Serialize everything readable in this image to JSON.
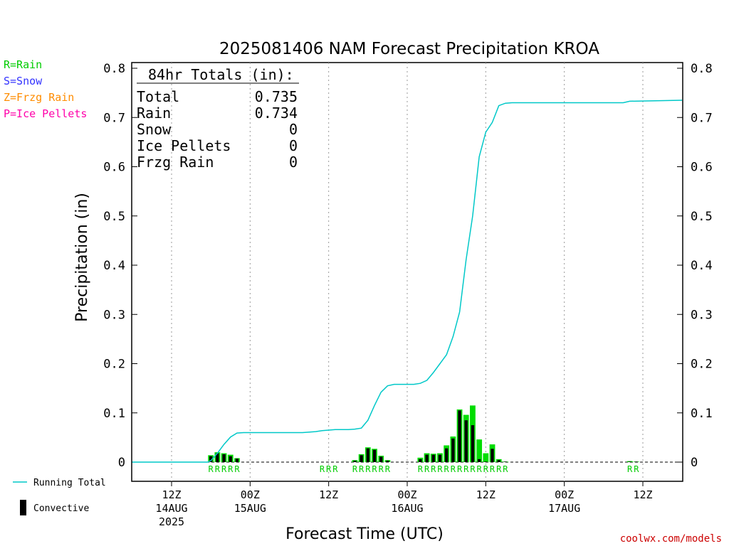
{
  "chart_data": {
    "type": "bar",
    "title": "2025081406 NAM Forecast Precipitation KROA",
    "xlabel": "Forecast Time (UTC)",
    "ylabel": "Precipitation (in)",
    "ylim": [
      0,
      0.8
    ],
    "yticks": [
      "0",
      "0.1",
      "0.2",
      "0.3",
      "0.4",
      "0.5",
      "0.6",
      "0.7",
      "0.8"
    ],
    "ytick_values": [
      0,
      0.1,
      0.2,
      0.3,
      0.4,
      0.5,
      0.6,
      0.7,
      0.8
    ],
    "x_units": "forecast hour",
    "xlim": [
      0,
      84
    ],
    "xticks": [
      {
        "hour": 6,
        "line1": "12Z",
        "line2": "14AUG",
        "line3": "2025"
      },
      {
        "hour": 18,
        "line1": "00Z",
        "line2": "15AUG",
        "line3": ""
      },
      {
        "hour": 30,
        "line1": "12Z",
        "line2": "",
        "line3": ""
      },
      {
        "hour": 42,
        "line1": "00Z",
        "line2": "16AUG",
        "line3": ""
      },
      {
        "hour": 54,
        "line1": "12Z",
        "line2": "",
        "line3": ""
      },
      {
        "hour": 66,
        "line1": "00Z",
        "line2": "17AUG",
        "line3": ""
      },
      {
        "hour": 78,
        "line1": "12Z",
        "line2": "",
        "line3": ""
      }
    ],
    "grid": "vertical dotted",
    "series": [
      {
        "name": "Rain",
        "color": "#00dd00",
        "x": [
          12,
          13,
          14,
          15,
          16,
          34,
          35,
          36,
          37,
          38,
          39,
          44,
          45,
          46,
          47,
          48,
          49,
          50,
          51,
          52,
          53,
          54,
          55,
          56,
          57,
          76,
          77
        ],
        "values": [
          0.014,
          0.02,
          0.018,
          0.015,
          0.008,
          0.004,
          0.016,
          0.03,
          0.027,
          0.013,
          0.004,
          0.009,
          0.018,
          0.017,
          0.018,
          0.034,
          0.052,
          0.107,
          0.096,
          0.115,
          0.046,
          0.018,
          0.036,
          0.006,
          0.001,
          0.002,
          0.001
        ]
      },
      {
        "name": "Convective",
        "color": "#000000",
        "x": [
          12,
          13,
          14,
          15,
          16,
          34,
          35,
          36,
          37,
          38,
          39,
          44,
          45,
          46,
          47,
          48,
          49,
          50,
          51,
          52,
          53,
          54,
          55,
          56,
          57,
          76,
          77
        ],
        "values": [
          0.012,
          0.018,
          0.016,
          0.012,
          0.007,
          0.003,
          0.014,
          0.028,
          0.025,
          0.011,
          0.003,
          0.006,
          0.015,
          0.015,
          0.015,
          0.028,
          0.048,
          0.105,
          0.085,
          0.075,
          0.006,
          0.001,
          0.027,
          0.004,
          0.001,
          0.001,
          0.001
        ]
      },
      {
        "name": "Running Total",
        "color": "#00c8c8",
        "x": [
          0,
          11.5,
          12,
          13,
          14,
          15,
          16,
          17,
          18,
          20,
          22,
          24,
          26,
          28,
          29,
          30,
          31,
          32,
          33,
          34,
          35,
          36,
          37,
          38,
          39,
          40,
          41,
          42,
          43,
          44,
          45,
          46,
          47,
          48,
          49,
          50,
          51,
          52,
          53,
          54,
          55,
          56,
          57,
          58,
          60,
          70,
          75,
          76,
          84
        ],
        "values": [
          0,
          0,
          0.003,
          0.018,
          0.036,
          0.051,
          0.059,
          0.06,
          0.06,
          0.06,
          0.06,
          0.06,
          0.06,
          0.062,
          0.064,
          0.065,
          0.066,
          0.066,
          0.066,
          0.067,
          0.069,
          0.085,
          0.115,
          0.142,
          0.155,
          0.158,
          0.158,
          0.158,
          0.158,
          0.16,
          0.166,
          0.182,
          0.2,
          0.218,
          0.255,
          0.305,
          0.412,
          0.5,
          0.62,
          0.67,
          0.69,
          0.724,
          0.729,
          0.73,
          0.73,
          0.73,
          0.73,
          0.733,
          0.735
        ]
      }
    ],
    "precip_type_labels": {
      "R": [
        12,
        13,
        14,
        15,
        16,
        29,
        30,
        31,
        34,
        35,
        36,
        37,
        38,
        39,
        44,
        45,
        46,
        47,
        48,
        49,
        50,
        51,
        52,
        53,
        54,
        55,
        56,
        57,
        76,
        77
      ]
    },
    "totals_box": {
      "header": "84hr Totals (in):",
      "rows": [
        {
          "label": "Total",
          "value": "0.735"
        },
        {
          "label": "Rain",
          "value": "0.734"
        },
        {
          "label": "Snow",
          "value": "0"
        },
        {
          "label": "Ice Pellets",
          "value": "0"
        },
        {
          "label": "Frzg Rain",
          "value": "0"
        }
      ]
    },
    "type_legend": [
      {
        "text": "R=Rain",
        "color": "#00cc00"
      },
      {
        "text": "S=Snow",
        "color": "#3333ff"
      },
      {
        "text": "Z=Frzg Rain",
        "color": "#ff8c00"
      },
      {
        "text": "P=Ice Pellets",
        "color": "#ff00aa"
      }
    ],
    "bottom_legend": [
      {
        "text": "Running Total",
        "color": "#00c8c8",
        "kind": "line"
      },
      {
        "text": "Convective",
        "color": "#000000",
        "kind": "bar"
      }
    ],
    "credit": "coolwx.com/models",
    "credit_color": "#cc0000"
  }
}
